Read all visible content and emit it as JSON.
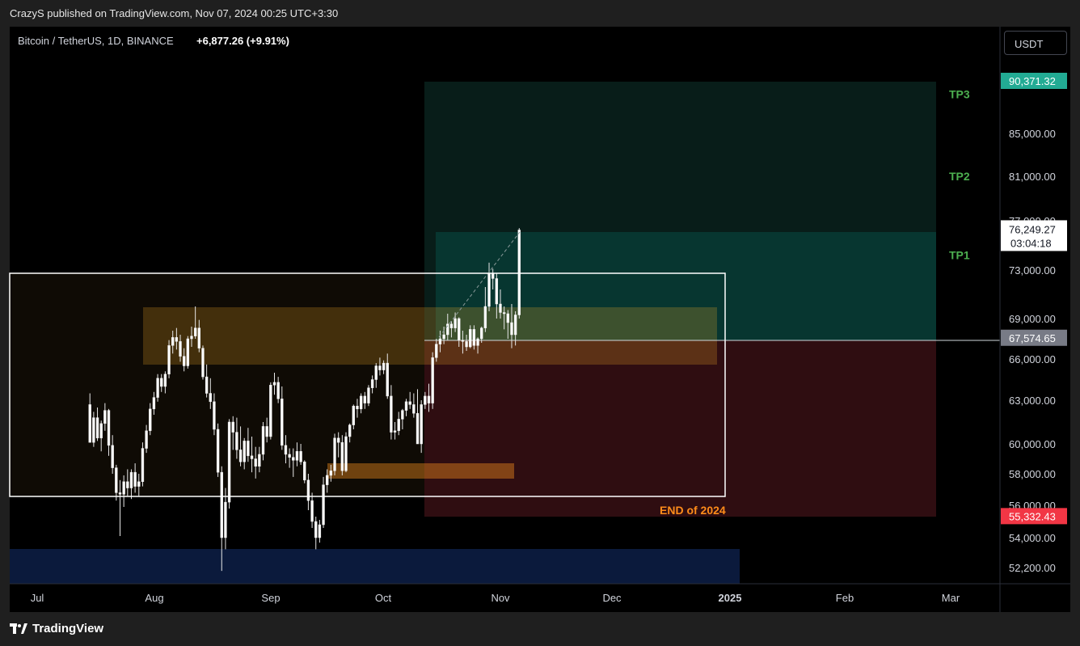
{
  "publish_line": "CrazyS published on TradingView.com, Nov 07, 2024 00:25 UTC+3:30",
  "legend": {
    "title": "Bitcoin / TetherUS, 1D, BINANCE",
    "change": "+6,877.26 (+9.91%)"
  },
  "currency_button": "USDT",
  "footer": {
    "brand": "TradingView"
  },
  "colors": {
    "target_zone": "#0b3a32",
    "stop_zone": "#3b1417",
    "box": "#ffffff",
    "orange_zone": "#4a3008",
    "navy_zone": "#0b1a3c",
    "price_tag_green": "#22ab94",
    "price_tag_red": "#f23645"
  },
  "chart_data": {
    "type": "candlestick",
    "symbol": "BTCUSDT",
    "interval": "1D",
    "x_ticks": [
      "Jul",
      "Aug",
      "Sep",
      "Oct",
      "Nov",
      "Dec",
      "2025",
      "Feb",
      "Mar"
    ],
    "y_ticks": [
      52200,
      54000,
      56000,
      58000,
      60000,
      63000,
      66000,
      69000,
      73000,
      77000,
      81000,
      85000
    ],
    "y_tick_labels": [
      "52,200.00",
      "54,000.00",
      "56,000.00",
      "58,000.00",
      "60,000.00",
      "63,000.00",
      "66,000.00",
      "69,000.00",
      "73,000.00",
      "77,000.00",
      "81,000.00",
      "85,000.00"
    ],
    "price_tags": [
      {
        "label": "90,371.32",
        "value": 90371.32,
        "kind": "target"
      },
      {
        "label": "76,249.27",
        "sub": "03:04:18",
        "value": 76249.27,
        "kind": "current"
      },
      {
        "label": "67,574.65",
        "value": 67574.65,
        "kind": "entry"
      },
      {
        "label": "55,332.43",
        "value": 55332.43,
        "kind": "stop"
      }
    ],
    "annotations": [
      {
        "text": "TP3",
        "value": 89000
      },
      {
        "text": "TP2",
        "value": 81000
      },
      {
        "text": "TP1",
        "value": 74200
      },
      {
        "text": "END of 2024",
        "value": 55800
      }
    ],
    "candles_ohlc": [
      [
        62700,
        63500,
        60100,
        60100
      ],
      [
        60100,
        62200,
        59800,
        61800
      ],
      [
        61800,
        62500,
        60200,
        60400
      ],
      [
        60400,
        61600,
        59500,
        61400
      ],
      [
        61400,
        62800,
        60900,
        62300
      ],
      [
        62300,
        62400,
        59200,
        59900
      ],
      [
        59900,
        60600,
        58000,
        58400
      ],
      [
        58400,
        58600,
        56300,
        56800
      ],
      [
        56800,
        57600,
        54100,
        56700
      ],
      [
        56700,
        57900,
        55900,
        57500
      ],
      [
        57500,
        58300,
        56600,
        57100
      ],
      [
        57100,
        58300,
        56400,
        58100
      ],
      [
        58100,
        58700,
        56800,
        57200
      ],
      [
        57200,
        58000,
        56600,
        57500
      ],
      [
        57500,
        60100,
        57200,
        59700
      ],
      [
        59700,
        61300,
        59400,
        60900
      ],
      [
        60900,
        62800,
        60600,
        62400
      ],
      [
        62400,
        63600,
        62000,
        63200
      ],
      [
        63200,
        64900,
        62900,
        64600
      ],
      [
        64600,
        64900,
        63600,
        64000
      ],
      [
        64000,
        65100,
        63500,
        64900
      ],
      [
        64900,
        67400,
        64600,
        67000
      ],
      [
        67000,
        68100,
        66400,
        67600
      ],
      [
        67600,
        68300,
        66700,
        67300
      ],
      [
        67300,
        67800,
        65800,
        66200
      ],
      [
        66200,
        66800,
        65100,
        65500
      ],
      [
        65500,
        67700,
        65300,
        67500
      ],
      [
        67500,
        68400,
        66900,
        67700
      ],
      [
        67700,
        70000,
        67500,
        68300
      ],
      [
        68300,
        68900,
        66500,
        66800
      ],
      [
        66800,
        67000,
        64500,
        64700
      ],
      [
        64700,
        65600,
        63200,
        63500
      ],
      [
        63500,
        64600,
        62400,
        62900
      ],
      [
        62900,
        63500,
        60600,
        61000
      ],
      [
        61000,
        61400,
        57800,
        58100
      ],
      [
        58100,
        58500,
        52000,
        54000
      ],
      [
        54000,
        57100,
        53300,
        56200
      ],
      [
        56200,
        61700,
        55800,
        61500
      ],
      [
        61500,
        61900,
        59600,
        60800
      ],
      [
        60800,
        61800,
        59000,
        59600
      ],
      [
        59600,
        61200,
        58500,
        58800
      ],
      [
        58800,
        60400,
        58300,
        60200
      ],
      [
        60200,
        61100,
        58800,
        59200
      ],
      [
        59200,
        60500,
        58100,
        59000
      ],
      [
        59000,
        59800,
        57700,
        58500
      ],
      [
        58500,
        59800,
        58100,
        59300
      ],
      [
        59300,
        61500,
        58900,
        61200
      ],
      [
        61200,
        61800,
        60100,
        60500
      ],
      [
        60500,
        64300,
        60300,
        64100
      ],
      [
        64100,
        65000,
        63400,
        64300
      ],
      [
        64300,
        64700,
        62800,
        63100
      ],
      [
        63100,
        64000,
        59600,
        59900
      ],
      [
        59900,
        60600,
        58700,
        59300
      ],
      [
        59300,
        59700,
        58400,
        59100
      ],
      [
        59100,
        59700,
        57800,
        58900
      ],
      [
        58900,
        60100,
        58500,
        59500
      ],
      [
        59500,
        60000,
        58600,
        58800
      ],
      [
        58800,
        58900,
        57400,
        57600
      ],
      [
        57600,
        58000,
        55700,
        56300
      ],
      [
        56300,
        56800,
        54600,
        55000
      ],
      [
        55000,
        55300,
        53300,
        54000
      ],
      [
        54000,
        55100,
        53700,
        54800
      ],
      [
        54800,
        57800,
        54600,
        57300
      ],
      [
        57300,
        58300,
        56800,
        57900
      ],
      [
        57900,
        58600,
        57500,
        58200
      ],
      [
        58200,
        60700,
        57900,
        60400
      ],
      [
        60400,
        60800,
        59100,
        60100
      ],
      [
        60100,
        60600,
        57900,
        58200
      ],
      [
        58200,
        60800,
        58100,
        60500
      ],
      [
        60500,
        61400,
        60100,
        61300
      ],
      [
        61300,
        62700,
        61000,
        62600
      ],
      [
        62600,
        63100,
        61800,
        62400
      ],
      [
        62400,
        63500,
        62100,
        63300
      ],
      [
        63300,
        63600,
        62400,
        62800
      ],
      [
        62800,
        64100,
        62600,
        63900
      ],
      [
        63900,
        64800,
        63500,
        64500
      ],
      [
        64500,
        65700,
        63900,
        65500
      ],
      [
        65500,
        66100,
        64800,
        65200
      ],
      [
        65200,
        65900,
        64900,
        65700
      ],
      [
        65700,
        66400,
        63100,
        63300
      ],
      [
        63300,
        64100,
        60300,
        60800
      ],
      [
        60800,
        61500,
        60300,
        60900
      ],
      [
        60900,
        62200,
        60600,
        61700
      ],
      [
        61700,
        62400,
        61000,
        62300
      ],
      [
        62300,
        63100,
        61900,
        62900
      ],
      [
        62900,
        63600,
        62400,
        62700
      ],
      [
        62700,
        63500,
        61800,
        62100
      ],
      [
        62100,
        63800,
        61600,
        60000
      ],
      [
        60000,
        63000,
        59400,
        62700
      ],
      [
        62700,
        63600,
        62400,
        63300
      ],
      [
        63300,
        64200,
        62200,
        62800
      ],
      [
        62800,
        66500,
        62400,
        66100
      ],
      [
        66100,
        67500,
        65800,
        67100
      ],
      [
        67100,
        68100,
        66500,
        67500
      ],
      [
        67500,
        68400,
        67100,
        67800
      ],
      [
        67800,
        69400,
        67400,
        68600
      ],
      [
        68600,
        68800,
        67600,
        68300
      ],
      [
        68300,
        69500,
        68000,
        69000
      ],
      [
        69000,
        69100,
        66900,
        67400
      ],
      [
        67400,
        68100,
        66400,
        67300
      ],
      [
        67300,
        67800,
        66600,
        66900
      ],
      [
        66900,
        68500,
        66800,
        68200
      ],
      [
        68200,
        68500,
        66700,
        67000
      ],
      [
        67000,
        67600,
        66400,
        67500
      ],
      [
        67500,
        68400,
        67200,
        68300
      ],
      [
        68300,
        71600,
        68000,
        70000
      ],
      [
        70000,
        73600,
        69600,
        72700
      ],
      [
        72700,
        73100,
        71400,
        72300
      ],
      [
        72300,
        72700,
        69000,
        70200
      ],
      [
        70200,
        71400,
        69000,
        69500
      ],
      [
        69500,
        70000,
        68200,
        69400
      ],
      [
        69400,
        69700,
        67500,
        68700
      ],
      [
        68700,
        70200,
        66800,
        67800
      ],
      [
        67800,
        69600,
        67000,
        69300
      ],
      [
        69300,
        76400,
        69000,
        76249
      ]
    ]
  }
}
